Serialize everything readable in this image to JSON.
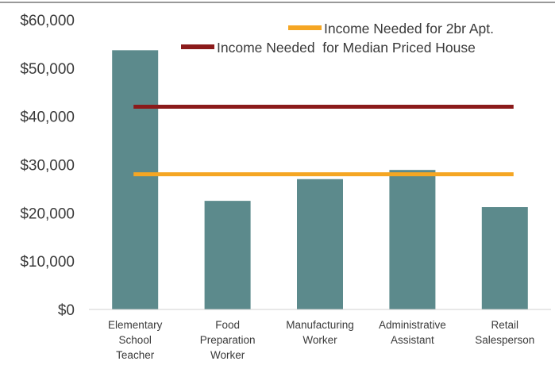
{
  "chart_data": {
    "type": "bar",
    "categories": [
      [
        "Elementary",
        "School",
        "Teacher"
      ],
      [
        "Food",
        "Preparation",
        "Worker"
      ],
      [
        "Manufacturing",
        "Worker"
      ],
      [
        "Administrative",
        "Assistant"
      ],
      [
        "Retail",
        "Salesperson"
      ]
    ],
    "values": [
      53700,
      22500,
      27000,
      28900,
      21200
    ],
    "bar_color": "#5c8a8c",
    "reference_lines": [
      {
        "name": "Income Needed for 2br Apt.",
        "value": 28000,
        "color": "#f5a623"
      },
      {
        "name": "Income Needed  for Median Priced House",
        "value": 42000,
        "color": "#8b1a1a"
      }
    ],
    "ylim": [
      0,
      60000
    ],
    "yticks": [
      "$0",
      "$10,000",
      "$20,000",
      "$30,000",
      "$40,000",
      "$50,000",
      "$60,000"
    ],
    "ytick_values": [
      0,
      10000,
      20000,
      30000,
      40000,
      50000,
      60000
    ],
    "legend_position": "top-right",
    "grid": false
  }
}
